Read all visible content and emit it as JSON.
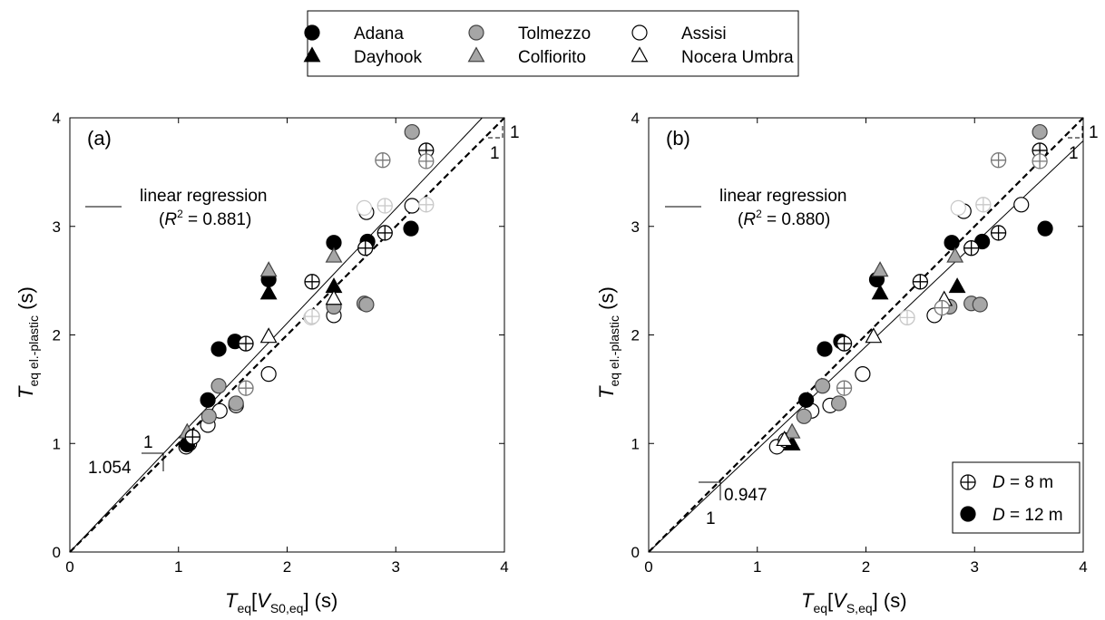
{
  "legend": {
    "entries": [
      {
        "label": "Adana",
        "marker": "circle",
        "fill": "#000000",
        "stroke": "#000000"
      },
      {
        "label": "Tolmezzo",
        "marker": "circle",
        "fill": "#a6a6a6",
        "stroke": "#444444"
      },
      {
        "label": "Assisi",
        "marker": "circle",
        "fill": "#ffffff",
        "stroke": "#000000"
      },
      {
        "label": "Dayhook",
        "marker": "triangle",
        "fill": "#000000",
        "stroke": "#000000"
      },
      {
        "label": "Colfiorito",
        "marker": "triangle",
        "fill": "#a6a6a6",
        "stroke": "#444444"
      },
      {
        "label": "Nocera Umbra",
        "marker": "triangle",
        "fill": "#ffffff",
        "stroke": "#000000"
      }
    ],
    "placement": "top-center"
  },
  "chart_data": [
    {
      "type": "scatter",
      "panel_label": "(a)",
      "xlabel": {
        "main": "T",
        "sub": "eq",
        "bracket_open": "[",
        "var": "V",
        "var_sub": "S0,eq",
        "bracket_close": "]",
        "unit": " (s)"
      },
      "ylabel": {
        "main": "T",
        "sub": "eq el.-plastic",
        "unit": " (s)"
      },
      "xlim": [
        0,
        4
      ],
      "ylim": [
        0,
        4
      ],
      "xticks": [
        "0",
        "1",
        "2",
        "3",
        "4"
      ],
      "yticks": [
        "0",
        "1",
        "2",
        "3",
        "4"
      ],
      "grid": false,
      "regression": {
        "slope": 1.054,
        "label": "linear regression",
        "r2_label": "(R² = 0.881)",
        "r2_symbol": "R",
        "r2_sup": "2",
        "r2_value": " = 0.881)"
      },
      "identity_line": {
        "slope": 1,
        "style": "dashed"
      },
      "slope_triangles": {
        "regression": {
          "rise_label": "1.054",
          "run_label": "1"
        },
        "identity": {
          "rise_label": "1",
          "run_label": "1"
        }
      },
      "points": [
        {
          "x": 1.07,
          "y": 0.97,
          "marker": "circle",
          "fill": "#ffffff",
          "stroke": "#000000"
        },
        {
          "x": 1.1,
          "y": 1.0,
          "marker": "circle",
          "fill": "#ffffff",
          "stroke": "#000000"
        },
        {
          "x": 1.27,
          "y": 1.17,
          "marker": "circle",
          "fill": "#ffffff",
          "stroke": "#000000"
        },
        {
          "x": 1.38,
          "y": 1.3,
          "marker": "circle",
          "fill": "#ffffff",
          "stroke": "#000000"
        },
        {
          "x": 1.53,
          "y": 1.35,
          "marker": "circle",
          "fill": "#ffffff",
          "stroke": "#000000"
        },
        {
          "x": 1.83,
          "y": 1.64,
          "marker": "circle",
          "fill": "#ffffff",
          "stroke": "#000000"
        },
        {
          "x": 2.43,
          "y": 2.18,
          "marker": "circle",
          "fill": "#ffffff",
          "stroke": "#000000"
        },
        {
          "x": 2.73,
          "y": 3.13,
          "marker": "circle",
          "fill": "#ffffff",
          "stroke": "#000000"
        },
        {
          "x": 3.15,
          "y": 3.19,
          "marker": "circle",
          "fill": "#ffffff",
          "stroke": "#000000"
        },
        {
          "x": 2.22,
          "y": 2.16,
          "marker": "circle",
          "fill": "#ffffff",
          "stroke": "#c8c8c8"
        },
        {
          "x": 2.71,
          "y": 3.17,
          "marker": "circle",
          "fill": "#ffffff",
          "stroke": "#c8c8c8"
        },
        {
          "x": 1.28,
          "y": 1.25,
          "marker": "circle",
          "fill": "#a6a6a6",
          "stroke": "#444444"
        },
        {
          "x": 1.37,
          "y": 1.53,
          "marker": "circle",
          "fill": "#a6a6a6",
          "stroke": "#444444"
        },
        {
          "x": 1.53,
          "y": 1.37,
          "marker": "circle",
          "fill": "#a6a6a6",
          "stroke": "#444444"
        },
        {
          "x": 2.43,
          "y": 2.26,
          "marker": "circle",
          "fill": "#a6a6a6",
          "stroke": "#444444"
        },
        {
          "x": 2.71,
          "y": 2.29,
          "marker": "circle",
          "fill": "#a6a6a6",
          "stroke": "#444444"
        },
        {
          "x": 2.73,
          "y": 2.28,
          "marker": "circle",
          "fill": "#a6a6a6",
          "stroke": "#444444"
        },
        {
          "x": 3.15,
          "y": 3.87,
          "marker": "circle",
          "fill": "#a6a6a6",
          "stroke": "#444444"
        },
        {
          "x": 1.08,
          "y": 0.99,
          "marker": "circle",
          "fill": "#000000",
          "stroke": "#000000"
        },
        {
          "x": 1.27,
          "y": 1.4,
          "marker": "circle",
          "fill": "#000000",
          "stroke": "#000000"
        },
        {
          "x": 1.37,
          "y": 1.87,
          "marker": "circle",
          "fill": "#000000",
          "stroke": "#000000"
        },
        {
          "x": 1.52,
          "y": 1.94,
          "marker": "circle",
          "fill": "#000000",
          "stroke": "#000000"
        },
        {
          "x": 1.83,
          "y": 2.51,
          "marker": "circle",
          "fill": "#000000",
          "stroke": "#000000"
        },
        {
          "x": 2.43,
          "y": 2.85,
          "marker": "circle",
          "fill": "#000000",
          "stroke": "#000000"
        },
        {
          "x": 2.74,
          "y": 2.86,
          "marker": "circle",
          "fill": "#000000",
          "stroke": "#000000"
        },
        {
          "x": 3.14,
          "y": 2.98,
          "marker": "circle",
          "fill": "#000000",
          "stroke": "#000000"
        },
        {
          "x": 1.08,
          "y": 1.02,
          "marker": "triangle",
          "fill": "#000000",
          "stroke": "#000000"
        },
        {
          "x": 1.83,
          "y": 2.38,
          "marker": "triangle",
          "fill": "#000000",
          "stroke": "#000000"
        },
        {
          "x": 2.43,
          "y": 2.44,
          "marker": "triangle",
          "fill": "#000000",
          "stroke": "#000000"
        },
        {
          "x": 1.08,
          "y": 1.1,
          "marker": "triangle",
          "fill": "#a6a6a6",
          "stroke": "#444444"
        },
        {
          "x": 1.83,
          "y": 2.59,
          "marker": "triangle",
          "fill": "#a6a6a6",
          "stroke": "#444444"
        },
        {
          "x": 2.43,
          "y": 2.72,
          "marker": "triangle",
          "fill": "#a6a6a6",
          "stroke": "#444444"
        },
        {
          "x": 1.83,
          "y": 1.98,
          "marker": "triangle",
          "fill": "#ffffff",
          "stroke": "#000000"
        },
        {
          "x": 2.43,
          "y": 2.33,
          "marker": "triangle",
          "fill": "#ffffff",
          "stroke": "#000000"
        },
        {
          "x": 1.13,
          "y": 1.06,
          "marker": "crosshair",
          "fill": "#ffffff",
          "stroke": "#000000"
        },
        {
          "x": 1.62,
          "y": 1.92,
          "marker": "crosshair",
          "fill": "#ffffff",
          "stroke": "#000000"
        },
        {
          "x": 2.23,
          "y": 2.49,
          "marker": "crosshair",
          "fill": "#ffffff",
          "stroke": "#000000"
        },
        {
          "x": 2.72,
          "y": 2.8,
          "marker": "crosshair",
          "fill": "#ffffff",
          "stroke": "#000000"
        },
        {
          "x": 2.9,
          "y": 2.94,
          "marker": "crosshair",
          "fill": "#ffffff",
          "stroke": "#000000"
        },
        {
          "x": 3.28,
          "y": 3.7,
          "marker": "crosshair",
          "fill": "#ffffff",
          "stroke": "#000000"
        },
        {
          "x": 1.62,
          "y": 1.51,
          "marker": "crosshair",
          "fill": "#ffffff",
          "stroke": "#777777"
        },
        {
          "x": 2.88,
          "y": 3.61,
          "marker": "crosshair",
          "fill": "#ffffff",
          "stroke": "#777777"
        },
        {
          "x": 3.28,
          "y": 3.6,
          "marker": "crosshair",
          "fill": "#ffffff",
          "stroke": "#777777"
        },
        {
          "x": 2.23,
          "y": 2.17,
          "marker": "crosshair",
          "fill": "#ffffff",
          "stroke": "#c8c8c8"
        },
        {
          "x": 2.9,
          "y": 3.19,
          "marker": "crosshair",
          "fill": "#ffffff",
          "stroke": "#c8c8c8"
        },
        {
          "x": 3.28,
          "y": 3.2,
          "marker": "crosshair",
          "fill": "#ffffff",
          "stroke": "#c8c8c8"
        }
      ]
    },
    {
      "type": "scatter",
      "panel_label": "(b)",
      "xlabel": {
        "main": "T",
        "sub": "eq",
        "bracket_open": "[",
        "var": "V",
        "var_sub": "S,eq",
        "bracket_close": "]",
        "unit": " (s)"
      },
      "ylabel": {
        "main": "T",
        "sub": "eq el.-plastic",
        "unit": " (s)"
      },
      "xlim": [
        0,
        4
      ],
      "ylim": [
        0,
        4
      ],
      "xticks": [
        "0",
        "1",
        "2",
        "3",
        "4"
      ],
      "yticks": [
        "0",
        "1",
        "2",
        "3",
        "4"
      ],
      "grid": false,
      "regression": {
        "slope": 0.947,
        "label": "linear regression",
        "r2_label": "(R² = 0.880)",
        "r2_symbol": "R",
        "r2_sup": "2",
        "r2_value": " = 0.880)"
      },
      "identity_line": {
        "slope": 1,
        "style": "dashed"
      },
      "slope_triangles": {
        "regression": {
          "rise_label": "1",
          "run_label": "0.947"
        },
        "identity": {
          "rise_label": "1",
          "run_label": "1"
        }
      },
      "marker_legend": {
        "entries": [
          {
            "marker": "crosshair",
            "prefix": "D",
            "value": " = 8 m"
          },
          {
            "marker": "circle",
            "prefix": "D",
            "value": " = 12 m"
          }
        ],
        "placement": "bottom-right"
      },
      "points": [
        {
          "x": 1.18,
          "y": 0.97,
          "marker": "circle",
          "fill": "#ffffff",
          "stroke": "#000000"
        },
        {
          "x": 1.26,
          "y": 1.03,
          "marker": "circle",
          "fill": "#ffffff",
          "stroke": "#000000"
        },
        {
          "x": 1.5,
          "y": 1.3,
          "marker": "circle",
          "fill": "#ffffff",
          "stroke": "#000000"
        },
        {
          "x": 1.67,
          "y": 1.35,
          "marker": "circle",
          "fill": "#ffffff",
          "stroke": "#000000"
        },
        {
          "x": 1.97,
          "y": 1.64,
          "marker": "circle",
          "fill": "#ffffff",
          "stroke": "#000000"
        },
        {
          "x": 2.63,
          "y": 2.18,
          "marker": "circle",
          "fill": "#ffffff",
          "stroke": "#000000"
        },
        {
          "x": 2.9,
          "y": 3.14,
          "marker": "circle",
          "fill": "#ffffff",
          "stroke": "#000000"
        },
        {
          "x": 3.43,
          "y": 3.2,
          "marker": "circle",
          "fill": "#ffffff",
          "stroke": "#000000"
        },
        {
          "x": 2.38,
          "y": 2.16,
          "marker": "circle",
          "fill": "#ffffff",
          "stroke": "#c8c8c8"
        },
        {
          "x": 2.85,
          "y": 3.17,
          "marker": "circle",
          "fill": "#ffffff",
          "stroke": "#c8c8c8"
        },
        {
          "x": 1.43,
          "y": 1.25,
          "marker": "circle",
          "fill": "#a6a6a6",
          "stroke": "#444444"
        },
        {
          "x": 1.6,
          "y": 1.53,
          "marker": "circle",
          "fill": "#a6a6a6",
          "stroke": "#444444"
        },
        {
          "x": 1.75,
          "y": 1.37,
          "marker": "circle",
          "fill": "#a6a6a6",
          "stroke": "#444444"
        },
        {
          "x": 2.77,
          "y": 2.26,
          "marker": "circle",
          "fill": "#a6a6a6",
          "stroke": "#444444"
        },
        {
          "x": 2.97,
          "y": 2.29,
          "marker": "circle",
          "fill": "#a6a6a6",
          "stroke": "#444444"
        },
        {
          "x": 3.05,
          "y": 2.28,
          "marker": "circle",
          "fill": "#a6a6a6",
          "stroke": "#444444"
        },
        {
          "x": 3.6,
          "y": 3.87,
          "marker": "circle",
          "fill": "#a6a6a6",
          "stroke": "#444444"
        },
        {
          "x": 1.45,
          "y": 1.4,
          "marker": "circle",
          "fill": "#000000",
          "stroke": "#000000"
        },
        {
          "x": 1.62,
          "y": 1.87,
          "marker": "circle",
          "fill": "#000000",
          "stroke": "#000000"
        },
        {
          "x": 1.77,
          "y": 1.94,
          "marker": "circle",
          "fill": "#000000",
          "stroke": "#000000"
        },
        {
          "x": 2.1,
          "y": 2.51,
          "marker": "circle",
          "fill": "#000000",
          "stroke": "#000000"
        },
        {
          "x": 2.79,
          "y": 2.85,
          "marker": "circle",
          "fill": "#000000",
          "stroke": "#000000"
        },
        {
          "x": 3.07,
          "y": 2.86,
          "marker": "circle",
          "fill": "#000000",
          "stroke": "#000000"
        },
        {
          "x": 3.65,
          "y": 2.98,
          "marker": "circle",
          "fill": "#000000",
          "stroke": "#000000"
        },
        {
          "x": 1.32,
          "y": 0.99,
          "marker": "triangle",
          "fill": "#000000",
          "stroke": "#000000"
        },
        {
          "x": 2.13,
          "y": 2.38,
          "marker": "triangle",
          "fill": "#000000",
          "stroke": "#000000"
        },
        {
          "x": 2.84,
          "y": 2.44,
          "marker": "triangle",
          "fill": "#000000",
          "stroke": "#000000"
        },
        {
          "x": 1.32,
          "y": 1.1,
          "marker": "triangle",
          "fill": "#a6a6a6",
          "stroke": "#444444"
        },
        {
          "x": 2.13,
          "y": 2.59,
          "marker": "triangle",
          "fill": "#a6a6a6",
          "stroke": "#444444"
        },
        {
          "x": 2.82,
          "y": 2.72,
          "marker": "triangle",
          "fill": "#a6a6a6",
          "stroke": "#444444"
        },
        {
          "x": 1.25,
          "y": 1.03,
          "marker": "triangle",
          "fill": "#ffffff",
          "stroke": "#000000"
        },
        {
          "x": 2.07,
          "y": 1.98,
          "marker": "triangle",
          "fill": "#ffffff",
          "stroke": "#000000"
        },
        {
          "x": 2.72,
          "y": 2.32,
          "marker": "triangle",
          "fill": "#ffffff",
          "stroke": "#000000"
        },
        {
          "x": 1.8,
          "y": 1.92,
          "marker": "crosshair",
          "fill": "#ffffff",
          "stroke": "#000000"
        },
        {
          "x": 2.5,
          "y": 2.49,
          "marker": "crosshair",
          "fill": "#ffffff",
          "stroke": "#000000"
        },
        {
          "x": 2.97,
          "y": 2.8,
          "marker": "crosshair",
          "fill": "#ffffff",
          "stroke": "#000000"
        },
        {
          "x": 3.22,
          "y": 2.94,
          "marker": "crosshair",
          "fill": "#ffffff",
          "stroke": "#000000"
        },
        {
          "x": 3.6,
          "y": 3.7,
          "marker": "crosshair",
          "fill": "#ffffff",
          "stroke": "#000000"
        },
        {
          "x": 1.8,
          "y": 1.51,
          "marker": "crosshair",
          "fill": "#ffffff",
          "stroke": "#777777"
        },
        {
          "x": 3.22,
          "y": 3.61,
          "marker": "crosshair",
          "fill": "#ffffff",
          "stroke": "#777777"
        },
        {
          "x": 3.6,
          "y": 3.6,
          "marker": "crosshair",
          "fill": "#ffffff",
          "stroke": "#777777"
        },
        {
          "x": 2.7,
          "y": 2.25,
          "marker": "crosshair",
          "fill": "#ffffff",
          "stroke": "#777777"
        },
        {
          "x": 2.38,
          "y": 2.16,
          "marker": "crosshair",
          "fill": "#ffffff",
          "stroke": "#c8c8c8"
        },
        {
          "x": 3.08,
          "y": 3.2,
          "marker": "crosshair",
          "fill": "#ffffff",
          "stroke": "#c8c8c8"
        }
      ]
    }
  ]
}
